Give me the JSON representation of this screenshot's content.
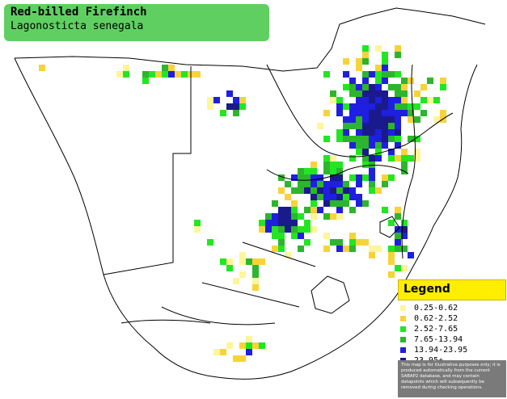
{
  "title": {
    "common_name": "Red-billed Firefinch",
    "scientific_name": "Lagonosticta senegala"
  },
  "legend": {
    "heading": "Legend",
    "items": [
      {
        "label": "0.25-0.62",
        "color": "#fff59a"
      },
      {
        "label": "0.62-2.52",
        "color": "#f7d33a"
      },
      {
        "label": "2.52-7.65",
        "color": "#22e622"
      },
      {
        "label": "7.65-13.94",
        "color": "#2db52d"
      },
      {
        "label": "13.94-23.95",
        "color": "#1f1fe0"
      },
      {
        "label": "23.95+",
        "color": "#1a1a8c"
      }
    ],
    "disclaimer": "This map is for illustrative purposes only; it is produced automatically from the current SABAP2 database, and may contain datapoints which will subsequently be removed during checking operations."
  },
  "colors": {
    "title_bg": "#5fcf62",
    "legend_header_bg": "#ffee00",
    "disclaimer_bg": "#7a7a7a",
    "border_line": "#000000"
  }
}
